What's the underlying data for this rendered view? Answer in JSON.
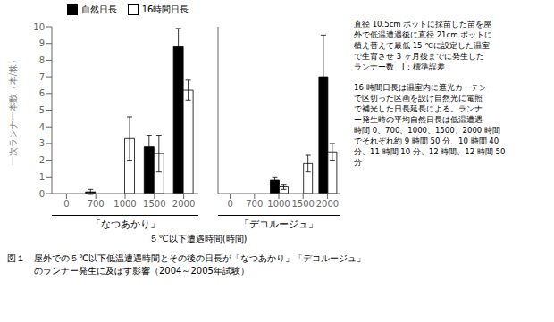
{
  "chart_data": [
    {
      "type": "bar",
      "title": "「なつあかり」",
      "ylabel": "一次ランナー本数（本/株）",
      "categories": [
        "0",
        "700",
        "1000",
        "1500",
        "2000"
      ],
      "series": [
        {
          "name": "自然日長",
          "color": "#000000",
          "values": [
            0.0,
            0.1,
            0.0,
            2.8,
            8.8
          ],
          "error": [
            0.0,
            0.15,
            0.0,
            0.7,
            1.1
          ]
        },
        {
          "name": "16時間日長",
          "color": "#ffffff",
          "values": [
            0.0,
            0.0,
            3.3,
            2.4,
            6.2
          ],
          "error": [
            0.0,
            0.0,
            1.3,
            1.1,
            0.6
          ]
        }
      ],
      "ylim": [
        0,
        10
      ],
      "yticks": [
        0,
        1,
        2,
        3,
        4,
        5,
        6,
        7,
        8,
        9,
        10
      ],
      "legend": "top"
    },
    {
      "type": "bar",
      "title": "「デコルージュ」",
      "categories": [
        "0",
        "700",
        "1000",
        "1500",
        "2000"
      ],
      "series": [
        {
          "name": "自然日長",
          "color": "#000000",
          "values": [
            0.0,
            0.0,
            0.8,
            0.0,
            7.0
          ],
          "error": [
            0.0,
            0.0,
            0.2,
            0.0,
            2.5
          ]
        },
        {
          "name": "16時間日長",
          "color": "#ffffff",
          "values": [
            0.0,
            0.0,
            0.4,
            1.8,
            2.5
          ],
          "error": [
            0.0,
            0.0,
            0.15,
            0.5,
            0.5
          ]
        }
      ],
      "ylim": [
        0,
        10
      ],
      "yticks": [
        0,
        1,
        2,
        3,
        4,
        5,
        6,
        7,
        8,
        9,
        10
      ],
      "tick_labels": "x"
    }
  ],
  "xlabel": "５℃以下遭遇時間(時間)",
  "caption": "図１　屋外での５℃以下低温遭遇時間とその後の日長が「なつあかり」「デコルージュ」\n　　　のランナー発生に及ぼす影響（2004～2005年試験）",
  "annotation": "直径 10.5cm ポットに採苗した苗を屋\n外で低温遭遇後に直径 21cm ポットに\n植え替えて最低 15 ℃に設定した温室\nで生育させ 3 ヶ月後までに発生した\nランナー数　I：標準誤差\n\n16 時間日長は温室内に遮光カーテン\nで区切った区画を設け自然光に電照\nで補光した日長延長による。ランナ\nー発生時の平均自然日長は低温遭遇\n時間 0、700、1000、1500、2000 時間\nでそれぞれ約 9 時間 50 分、10 時間 40\n分、11 時間 10 分、12 時間、12 時間 50\n分"
}
